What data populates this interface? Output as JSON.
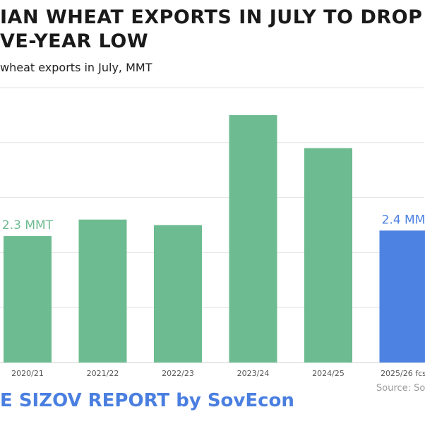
{
  "title_line1": "IAN WHEAT EXPORTS IN JULY TO DROP",
  "title_line2": "VE-YEAR LOW",
  "subtitle": "wheat exports in July, MMT",
  "source": "Source: So",
  "brand": "E SIZOV REPORT by SovEcon",
  "colors": {
    "historical_bar": "#6dbb90",
    "forecast_bar": "#4e82e2",
    "gridline": "#e3e3e3",
    "axis": "#d0d0d0"
  },
  "chart_data": {
    "type": "bar",
    "title": "IAN WHEAT EXPORTS IN JULY TO DROP VE-YEAR LOW",
    "ylabel": "",
    "xlabel": "",
    "grid": true,
    "ylim": [
      0,
      5
    ],
    "categories": [
      "2020/21",
      "2021/22",
      "2022/23",
      "2023/24",
      "2024/25",
      "2025/26 fcs"
    ],
    "values": [
      2.3,
      2.6,
      2.5,
      4.5,
      3.9,
      2.4
    ],
    "labels": [
      {
        "index": 0,
        "text": "2.3 MMT"
      },
      {
        "index": 5,
        "text": "2.4 MM"
      }
    ]
  }
}
